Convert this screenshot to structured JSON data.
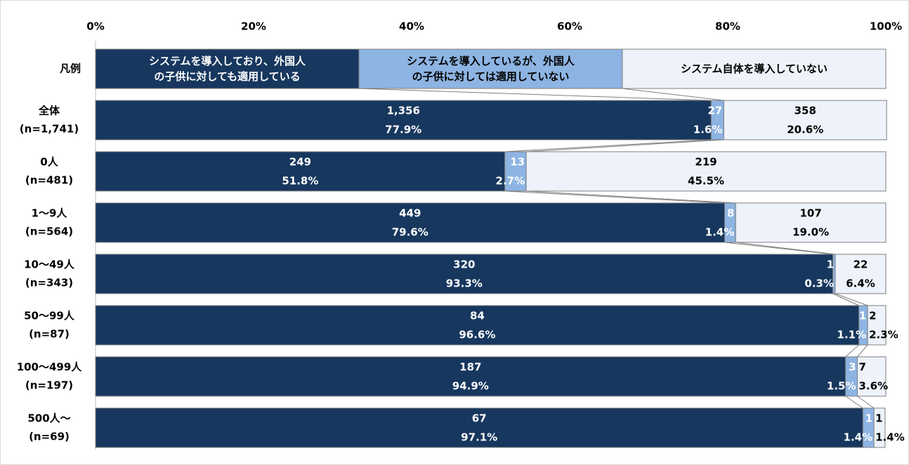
{
  "chart_data": {
    "type": "stacked_bar_100",
    "legend_label": "凡例",
    "categories": [
      "全体",
      "0人",
      "1～9人",
      "10～49人",
      "50～99人",
      "100～499人",
      "500人～"
    ],
    "n_labels": [
      "(n=1,741)",
      "(n=481)",
      "(n=564)",
      "(n=343)",
      "(n=87)",
      "(n=197)",
      "(n=69)"
    ],
    "series": [
      {
        "name": "システムを導入しており、外国人\nの子供に対しても適用している",
        "color": "#17375e",
        "values": [
          77.9,
          51.8,
          79.6,
          93.3,
          96.6,
          94.9,
          97.1
        ],
        "value_labels": [
          "77.9%",
          "51.8%",
          "79.6%",
          "93.3%",
          "96.6%",
          "94.9%",
          "97.1%"
        ],
        "count_labels": [
          "1,356",
          "249",
          "449",
          "320",
          "84",
          "187",
          "67"
        ]
      },
      {
        "name": "システムを導入しているが、外国人\nの子供に対しては適用していない",
        "color": "#8db4e2",
        "values": [
          1.6,
          2.7,
          1.4,
          0.3,
          1.1,
          1.5,
          1.4
        ],
        "value_labels": [
          "1.6%",
          "2.7%",
          "1.4%",
          "0.3%",
          "1.1%",
          "1.5%",
          "1.4%"
        ],
        "count_labels": [
          "27",
          "13",
          "8",
          "1",
          "1",
          "3",
          "1"
        ]
      },
      {
        "name": "システム自体を導入していない",
        "color": "#eef3fb",
        "values": [
          20.6,
          45.5,
          19.0,
          6.4,
          2.3,
          3.6,
          1.4
        ],
        "value_labels": [
          "20.6%",
          "45.5%",
          "19.0%",
          "6.4%",
          "2.3%",
          "3.6%",
          "1.4%"
        ],
        "count_labels": [
          "358",
          "219",
          "107",
          "22",
          "2",
          "7",
          "1"
        ]
      }
    ],
    "xlim": [
      0,
      100
    ],
    "xticks": [
      {
        "value": 0,
        "label": "0%"
      },
      {
        "value": 20,
        "label": "20%"
      },
      {
        "value": 40,
        "label": "40%"
      },
      {
        "value": 60,
        "label": "60%"
      },
      {
        "value": 80,
        "label": "80%"
      },
      {
        "value": 100,
        "label": "100%"
      }
    ]
  }
}
